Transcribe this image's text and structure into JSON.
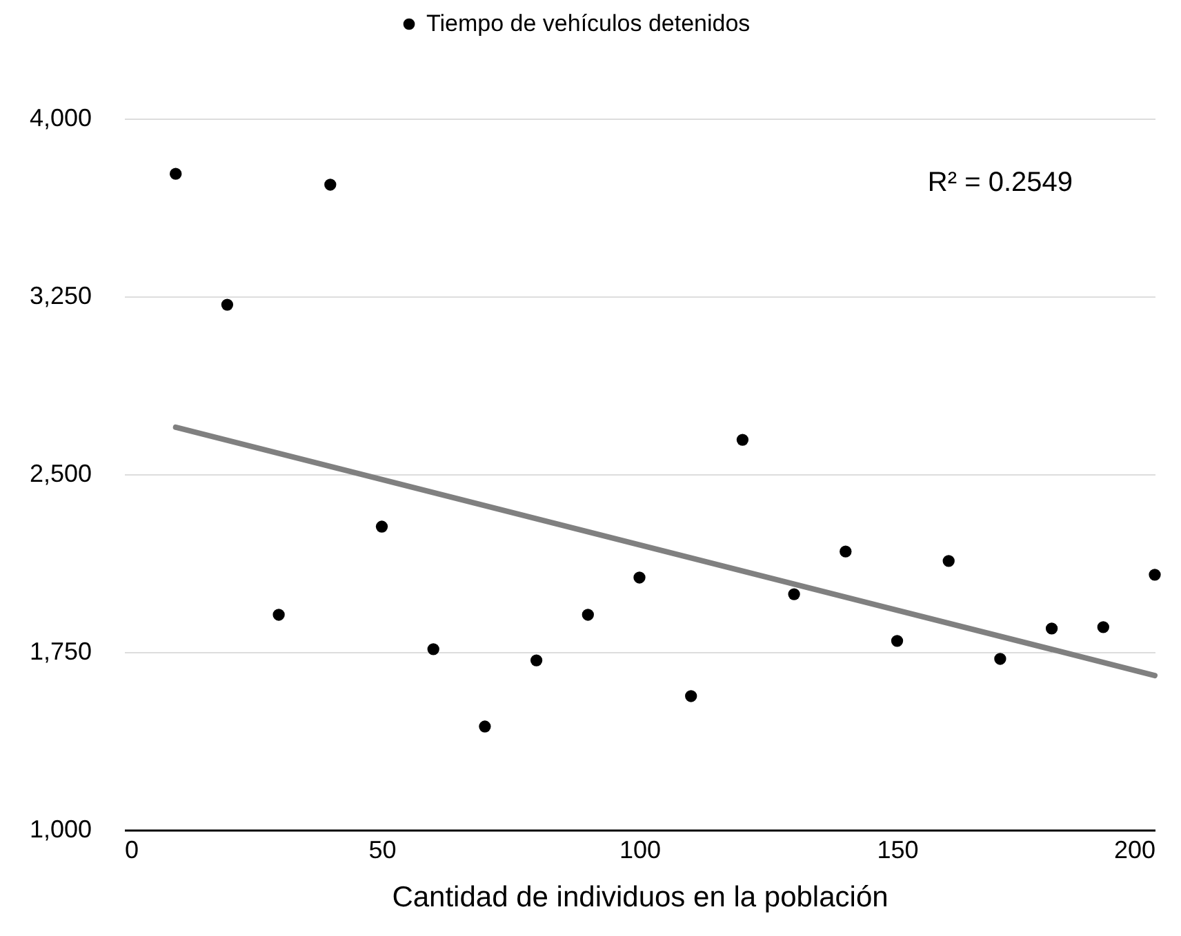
{
  "chart_data": {
    "type": "scatter",
    "xlabel": "Cantidad de individuos en la población",
    "xlim": [
      0,
      200
    ],
    "xticks": [
      0,
      50,
      100,
      150,
      200
    ],
    "ylim": [
      1000,
      4000
    ],
    "yticks": [
      {
        "value": 1000,
        "label": "1,000"
      },
      {
        "value": 1750,
        "label": "1,750"
      },
      {
        "value": 2500,
        "label": "2,500"
      },
      {
        "value": 3250,
        "label": "3,250"
      },
      {
        "value": 4000,
        "label": "4,000"
      }
    ],
    "grid": "y",
    "legend": "top",
    "marker": "circle",
    "annotations": [
      "R² = 0.2549"
    ],
    "series": [
      {
        "name": "Tiempo de vehículos detenidos",
        "color": "#000000",
        "x": [
          10,
          20,
          30,
          40,
          50,
          60,
          70,
          80,
          90,
          100,
          110,
          120,
          130,
          140,
          150,
          160,
          170,
          180,
          190,
          200
        ],
        "values": [
          3767,
          3215,
          1907,
          3721,
          2279,
          1762,
          1436,
          1715,
          1907,
          2064,
          1564,
          2645,
          1994,
          2174,
          1797,
          2134,
          1721,
          1849,
          1855,
          2076
        ]
      },
      {
        "type": "line",
        "marker": "none",
        "color": "#808080",
        "x": [
          10,
          200
        ],
        "values": [
          2698,
          1651
        ]
      }
    ]
  }
}
